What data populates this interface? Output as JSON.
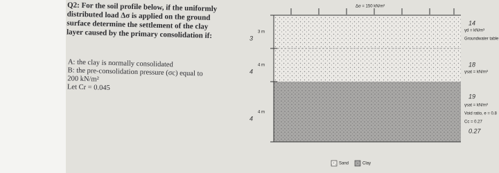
{
  "question": {
    "lines": [
      "Q2: For the soil profile below, if the uniformly",
      "distributed load Δσ is applied on the ground",
      "surface determine the settlement of the clay",
      "layer caused by the primary consolidation if:"
    ],
    "parts": [
      "A: the clay is normally consolidated",
      "B: the pre-consolidation pressure (σc) equal to",
      "200 kN/m²",
      "Let Cr = 0.045"
    ]
  },
  "diagram": {
    "load": "Δσ = 150 kN/m²",
    "depths": [
      "3 m",
      "4 m",
      "4 m"
    ],
    "handwritten_left": [
      "3",
      "4",
      "4"
    ],
    "labels": [
      "γd = kN/m³",
      "Groundwater table",
      "γsat = kN/m³",
      "γsat = kN/m³",
      "Void ratio, e = 0.8",
      "Cc = 0.27"
    ],
    "handwritten_right": [
      "14",
      "18",
      "19",
      "0.27"
    ],
    "legend": [
      "Sand",
      "Clay"
    ]
  }
}
